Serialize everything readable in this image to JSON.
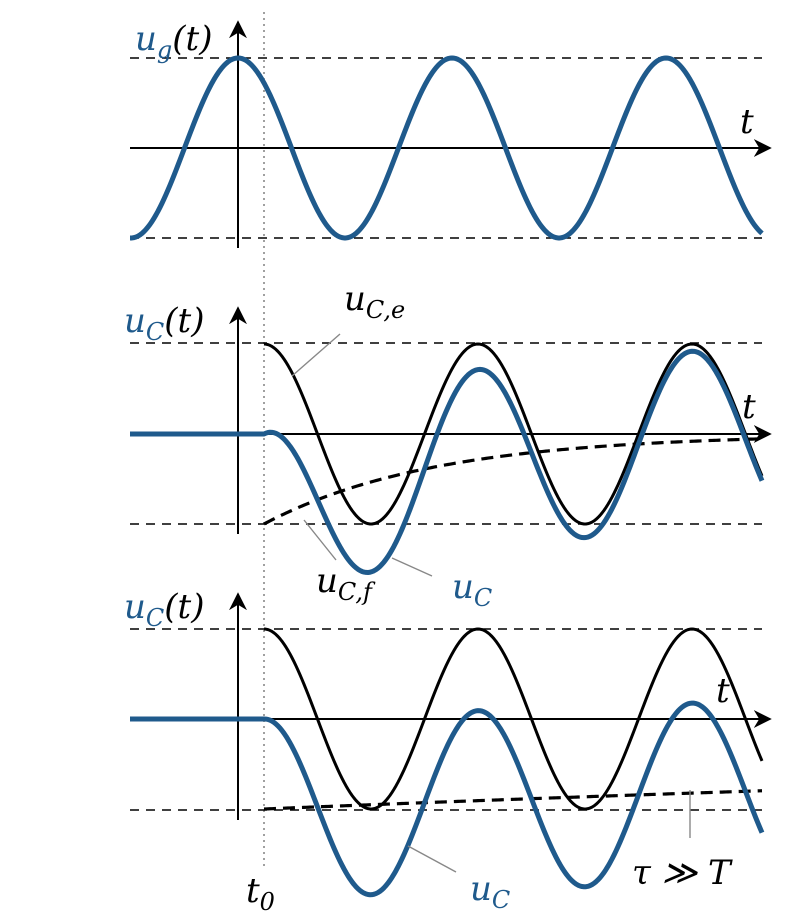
{
  "panels": [
    {
      "ylabel_main": "u",
      "ylabel_sub": "g",
      "ylabel_arg": "(t)",
      "xlabel": "t"
    },
    {
      "ylabel_main": "u",
      "ylabel_sub": "C",
      "ylabel_arg": "(t)",
      "xlabel": "t",
      "labels": {
        "forced_main": "u",
        "forced_sub": "C,e",
        "free_main": "u",
        "free_sub": "C,f",
        "total_main": "u",
        "total_sub": "C"
      }
    },
    {
      "ylabel_main": "u",
      "ylabel_sub": "C",
      "ylabel_arg": "(t)",
      "xlabel": "t",
      "labels": {
        "total_main": "u",
        "total_sub": "C",
        "tau_note": "τ ≫ T"
      }
    }
  ],
  "t0_main": "t",
  "t0_sub": "0",
  "colors": {
    "signal": "#1f5a8c",
    "reference": "#000000"
  }
}
